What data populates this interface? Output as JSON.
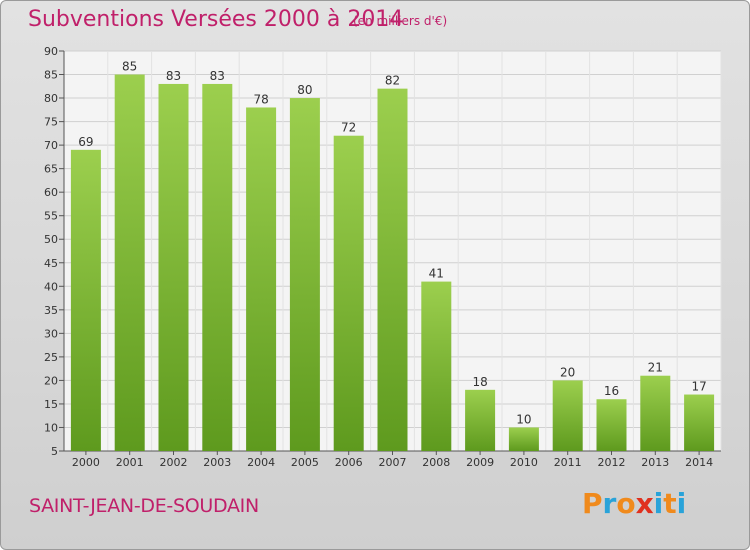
{
  "header": {
    "title": "Subventions Versées 2000 à 2014",
    "subtitle": "(en milliers d'€)"
  },
  "footer": {
    "commune": "SAINT-JEAN-DE-SOUDAIN",
    "logo_text": "Proxiti",
    "logo_colors": [
      "#f08a1c",
      "#29a3d9",
      "#f08a1c",
      "#e0301e",
      "#29a3d9",
      "#f08a1c",
      "#29a3d9"
    ]
  },
  "colors": {
    "title": "#c0206a",
    "bar_light": "#9ccf4e",
    "bar_dark": "#5e9a1e"
  },
  "chart_data": {
    "type": "bar",
    "title": "Subventions Versées 2000 à 2014",
    "subtitle": "(en milliers d'€)",
    "categories": [
      "2000",
      "2001",
      "2002",
      "2003",
      "2004",
      "2005",
      "2006",
      "2007",
      "2008",
      "2009",
      "2010",
      "2011",
      "2012",
      "2013",
      "2014"
    ],
    "values": [
      69,
      85,
      83,
      83,
      78,
      80,
      72,
      82,
      41,
      18,
      10,
      20,
      16,
      21,
      17
    ],
    "ylim": [
      5,
      90
    ],
    "yticks": [
      5,
      10,
      15,
      20,
      25,
      30,
      35,
      40,
      45,
      50,
      55,
      60,
      65,
      70,
      75,
      80,
      85,
      90
    ],
    "grid": true
  }
}
